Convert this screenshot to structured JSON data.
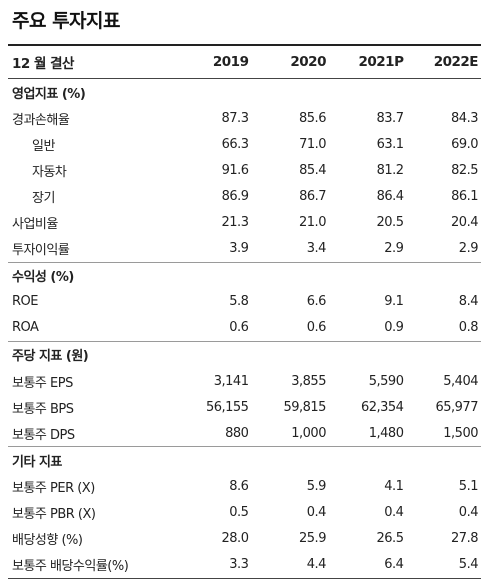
{
  "title": "주요 투자지표",
  "header": {
    "label": "12 월 결산",
    "years": [
      "2019",
      "2020",
      "2021P",
      "2022E"
    ]
  },
  "rows": [
    {
      "type": "section",
      "label": "영업지표 (%)",
      "divider": false,
      "values": [
        "",
        "",
        "",
        ""
      ]
    },
    {
      "type": "data",
      "label": "경과손해율",
      "indent": false,
      "values": [
        "87.3",
        "85.6",
        "83.7",
        "84.3"
      ]
    },
    {
      "type": "data",
      "label": "일반",
      "indent": true,
      "values": [
        "66.3",
        "71.0",
        "63.1",
        "69.0"
      ]
    },
    {
      "type": "data",
      "label": "자동차",
      "indent": true,
      "values": [
        "91.6",
        "85.4",
        "81.2",
        "82.5"
      ]
    },
    {
      "type": "data",
      "label": "장기",
      "indent": true,
      "values": [
        "86.9",
        "86.7",
        "86.4",
        "86.1"
      ]
    },
    {
      "type": "data",
      "label": "사업비율",
      "indent": false,
      "values": [
        "21.3",
        "21.0",
        "20.5",
        "20.4"
      ]
    },
    {
      "type": "data",
      "label": "투자이익률",
      "indent": false,
      "values": [
        "3.9",
        "3.4",
        "2.9",
        "2.9"
      ]
    },
    {
      "type": "section",
      "label": "수익성 (%)",
      "divider": true,
      "values": [
        "",
        "",
        "",
        ""
      ]
    },
    {
      "type": "data",
      "label": "ROE",
      "indent": false,
      "values": [
        "5.8",
        "6.6",
        "9.1",
        "8.4"
      ]
    },
    {
      "type": "data",
      "label": "ROA",
      "indent": false,
      "values": [
        "0.6",
        "0.6",
        "0.9",
        "0.8"
      ]
    },
    {
      "type": "section",
      "label": "주당 지표 (원)",
      "divider": true,
      "values": [
        "",
        "",
        "",
        ""
      ]
    },
    {
      "type": "data",
      "label": "보통주 EPS",
      "indent": false,
      "values": [
        "3,141",
        "3,855",
        "5,590",
        "5,404"
      ]
    },
    {
      "type": "data",
      "label": "보통주 BPS",
      "indent": false,
      "values": [
        "56,155",
        "59,815",
        "62,354",
        "65,977"
      ]
    },
    {
      "type": "data",
      "label": "보통주 DPS",
      "indent": false,
      "values": [
        "880",
        "1,000",
        "1,480",
        "1,500"
      ]
    },
    {
      "type": "section",
      "label": "기타 지표",
      "divider": true,
      "values": [
        "",
        "",
        "",
        ""
      ]
    },
    {
      "type": "data",
      "label": "보통주 PER (X)",
      "indent": false,
      "values": [
        "8.6",
        "5.9",
        "4.1",
        "5.1"
      ]
    },
    {
      "type": "data",
      "label": "보통주 PBR (X)",
      "indent": false,
      "values": [
        "0.5",
        "0.4",
        "0.4",
        "0.4"
      ]
    },
    {
      "type": "data",
      "label": "배당성향 (%)",
      "indent": false,
      "values": [
        "28.0",
        "25.9",
        "26.5",
        "27.8"
      ]
    },
    {
      "type": "data",
      "label": "보통주 배당수익률(%)",
      "indent": false,
      "values": [
        "3.3",
        "4.4",
        "6.4",
        "5.4"
      ]
    }
  ]
}
